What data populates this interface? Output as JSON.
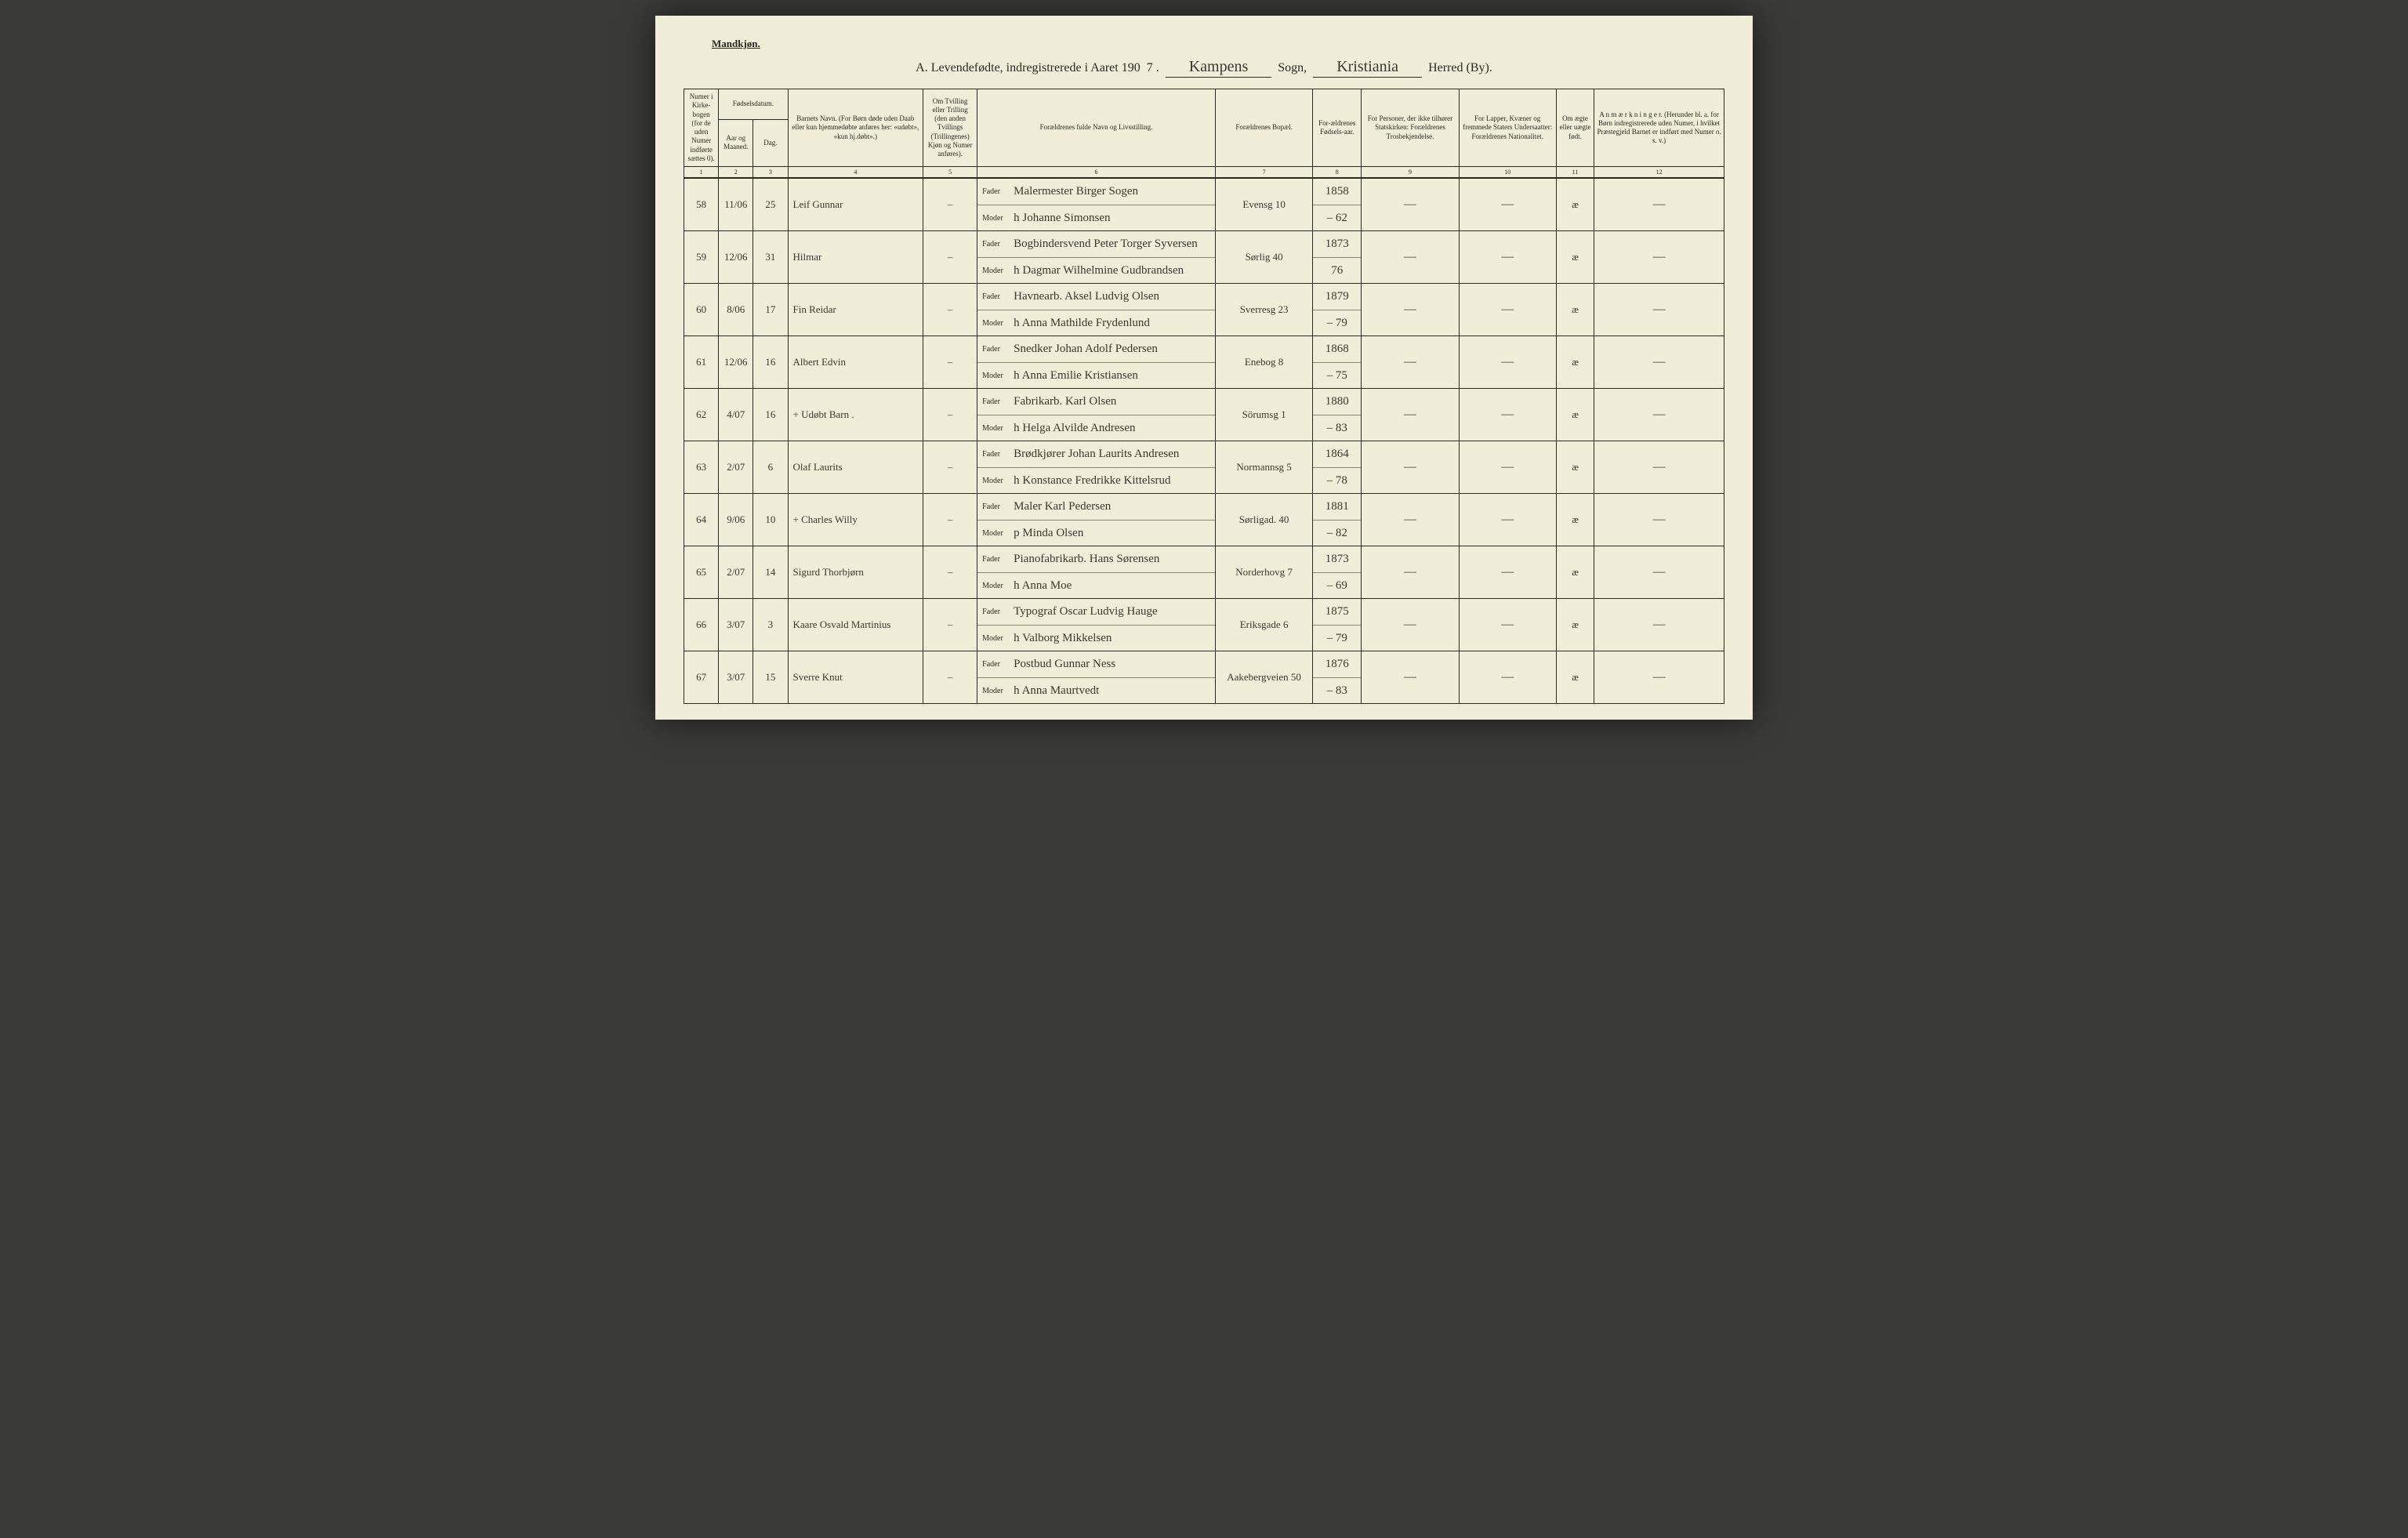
{
  "header": {
    "corner": "Mandkjøn.",
    "title_prefix": "A.  Levendefødte, indregistrerede i Aaret 190",
    "year_suffix": "7 .",
    "sogn_value": "Kampens",
    "sogn_label": "Sogn,",
    "herred_value": "Kristiania",
    "herred_label": "Herred (By)."
  },
  "columns": {
    "c1": "Numer i Kirke-bogen (for de uden Numer indførte sættes 0).",
    "c2a": "Fødselsdatum.",
    "c2": "Aar og Maaned.",
    "c3": "Dag.",
    "c4": "Barnets Navn.\n(For Børn døde uden Daab eller kun hjemmedøbte anføres her: «udøbt», «kun hj.døbt».)",
    "c5": "Om Tvilling eller Trilling (den anden Tvillings (Trillingenes) Kjøn og Numer anføres).",
    "c6": "Forældrenes fulde Navn og Livsstilling.",
    "c7": "Forældrenes Bopæl.",
    "c8": "For-ældrenes Fødsels-aar.",
    "c9": "For Personer, der ikke tilhører Statskirken: Forældrenes Trosbekjendelse.",
    "c10": "For Lapper, Kvæner og fremmede Staters Undersaatter: Forældrenes Nationalitet.",
    "c11": "Om ægte eller uægte født.",
    "c12": "A n m æ r k n i n g e r.\n(Herunder bl. a. for Børn indregistrerede uden Numer, i hvilket Præstegjeld Barnet er indført med Numer o. s. v.)"
  },
  "colnums": [
    "1",
    "2",
    "3",
    "4",
    "5",
    "6",
    "7",
    "8",
    "9",
    "10",
    "11",
    "12"
  ],
  "parent_labels": {
    "father": "Fader",
    "mother": "Moder"
  },
  "rows": [
    {
      "num": "58",
      "ym": "11/06",
      "day": "25",
      "name": "Leif Gunnar",
      "twin": "–",
      "father": "Malermester Birger Sogen",
      "mother": "h Johanne Simonsen",
      "bopael": "Evensg 10",
      "fy": "1858",
      "my": "– 62",
      "legit": "æ"
    },
    {
      "num": "59",
      "ym": "12/06",
      "day": "31",
      "name": "Hilmar",
      "twin": "–",
      "father": "Bogbindersvend Peter Torger Syversen",
      "mother": "h Dagmar Wilhelmine Gudbrandsen",
      "bopael": "Sørlig 40",
      "fy": "1873",
      "my": "76",
      "legit": "æ"
    },
    {
      "num": "60",
      "ym": "8/06",
      "day": "17",
      "name": "Fin Reidar",
      "twin": "–",
      "father": "Havnearb. Aksel Ludvig Olsen",
      "mother": "h Anna Mathilde Frydenlund",
      "bopael": "Sverresg 23",
      "fy": "1879",
      "my": "– 79",
      "legit": "æ"
    },
    {
      "num": "61",
      "ym": "12/06",
      "day": "16",
      "name": "Albert Edvin",
      "twin": "–",
      "father": "Snedker Johan Adolf Pedersen",
      "mother": "h Anna Emilie Kristiansen",
      "bopael": "Enebog 8",
      "fy": "1868",
      "my": "– 75",
      "legit": "æ"
    },
    {
      "num": "62",
      "ym": "4/07",
      "day": "16",
      "name": "+ Udøbt Barn .",
      "twin": "–",
      "father": "Fabrikarb. Karl Olsen",
      "mother": "h Helga Alvilde Andresen",
      "bopael": "Sörumsg 1",
      "fy": "1880",
      "my": "– 83",
      "legit": "æ"
    },
    {
      "num": "63",
      "ym": "2/07",
      "day": "6",
      "name": "Olaf Laurits",
      "twin": "–",
      "father": "Brødkjører Johan Laurits Andresen",
      "mother": "h Konstance Fredrikke Kittelsrud",
      "bopael": "Normannsg 5",
      "fy": "1864",
      "my": "– 78",
      "legit": "æ"
    },
    {
      "num": "64",
      "ym": "9/06",
      "day": "10",
      "name": "+ Charles Willy",
      "twin": "–",
      "father": "Maler Karl Pedersen",
      "mother": "p Minda Olsen",
      "bopael": "Sørligad. 40",
      "fy": "1881",
      "my": "– 82",
      "legit": "æ"
    },
    {
      "num": "65",
      "ym": "2/07",
      "day": "14",
      "name": "Sigurd Thorbjørn",
      "twin": "–",
      "father": "Pianofabrikarb. Hans Sørensen",
      "mother": "h Anna Moe",
      "bopael": "Norderhovg 7",
      "fy": "1873",
      "my": "– 69",
      "legit": "æ"
    },
    {
      "num": "66",
      "ym": "3/07",
      "day": "3",
      "name": "Kaare Osvald Martinius",
      "twin": "–",
      "father": "Typograf Oscar Ludvig Hauge",
      "mother": "h Valborg Mikkelsen",
      "bopael": "Eriksgade 6",
      "fy": "1875",
      "my": "– 79",
      "legit": "æ"
    },
    {
      "num": "67",
      "ym": "3/07",
      "day": "15",
      "name": "Sverre Knut",
      "twin": "–",
      "father": "Postbud Gunnar Ness",
      "mother": "h Anna Maurtvedt",
      "bopael": "Aakebergveien 50",
      "fy": "1876",
      "my": "– 83",
      "legit": "æ"
    }
  ]
}
